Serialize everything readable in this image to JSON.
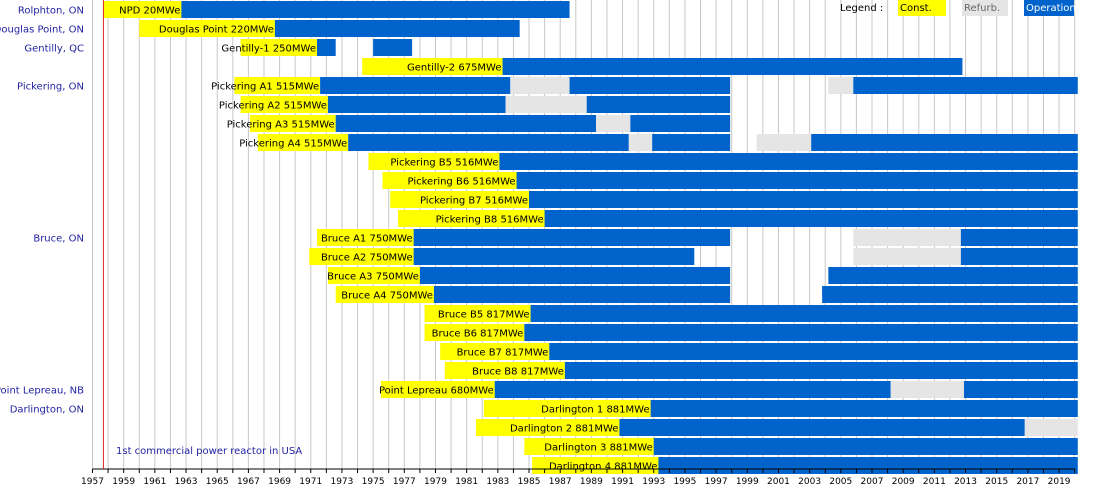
{
  "chart_data": {
    "type": "timeline",
    "title": "",
    "x_axis": {
      "start": 1957,
      "end": 2020,
      "tick_labels": [
        "1957",
        "1959",
        "1961",
        "1963",
        "1965",
        "1967",
        "1969",
        "1971",
        "1973",
        "1975",
        "1977",
        "1979",
        "1981",
        "1983",
        "1985",
        "1987",
        "1989",
        "1991",
        "1993",
        "1995",
        "1997",
        "1999",
        "2001",
        "2003",
        "2005",
        "2007",
        "2009",
        "2011",
        "2013",
        "2015",
        "2017",
        "2019"
      ],
      "grid": true
    },
    "legend": {
      "title": "Legend :",
      "placement": "top-right",
      "entries": [
        {
          "key": "const",
          "label": "Const.",
          "color": "#ffff00"
        },
        {
          "key": "refurb",
          "label": "Refurb.",
          "color": "#e5e5e5"
        },
        {
          "key": "operation",
          "label": "Operation.",
          "color": "#0063cc"
        }
      ]
    },
    "colors": {
      "const": "#ffff00",
      "refurb": "#e5e5e5",
      "operation": "#0063cc",
      "annotation": "#dd2222",
      "label_text": "#1f1fa0"
    },
    "annotations": [
      {
        "year": 1957.7,
        "text": "1st commercial power reactor in USA"
      }
    ],
    "sites": [
      {
        "label": "Rolphton, ON",
        "row": 0
      },
      {
        "label": "Douglas Point, ON",
        "row": 1
      },
      {
        "label": "Gentilly, QC",
        "row": 2
      },
      {
        "label": "Pickering, ON",
        "row": 4
      },
      {
        "label": "Bruce, ON",
        "row": 12
      },
      {
        "label": "Point Lepreau, NB",
        "row": 20
      },
      {
        "label": "Darlington, ON",
        "row": 21
      }
    ],
    "reactors": [
      {
        "name": "NPD",
        "capacity": "20MWe",
        "row": 0,
        "segments": [
          {
            "state": "const",
            "start": 1957.7,
            "end": 1962.7
          },
          {
            "state": "operation",
            "start": 1962.7,
            "end": 1987.6
          }
        ]
      },
      {
        "name": "Douglas Point",
        "capacity": "220MWe",
        "row": 1,
        "segments": [
          {
            "state": "const",
            "start": 1960.0,
            "end": 1968.7
          },
          {
            "state": "operation",
            "start": 1968.7,
            "end": 1984.4
          }
        ]
      },
      {
        "name": "Gentilly-1",
        "capacity": "250MWe",
        "row": 2,
        "segments": [
          {
            "state": "const",
            "start": 1966.5,
            "end": 1971.4
          },
          {
            "state": "operation",
            "start": 1971.4,
            "end": 1972.6
          },
          {
            "state": "operation",
            "start": 1975.0,
            "end": 1977.5
          }
        ]
      },
      {
        "name": "Gentilly-2",
        "capacity": "675MWe",
        "row": 3,
        "segments": [
          {
            "state": "const",
            "start": 1974.3,
            "end": 1983.3
          },
          {
            "state": "operation",
            "start": 1983.3,
            "end": 2012.8
          }
        ]
      },
      {
        "name": "Pickering A1",
        "capacity": "515MWe",
        "row": 4,
        "segments": [
          {
            "state": "const",
            "start": 1966.1,
            "end": 1971.6
          },
          {
            "state": "operation",
            "start": 1971.6,
            "end": 1983.8
          },
          {
            "state": "refurb",
            "start": 1983.8,
            "end": 1987.6
          },
          {
            "state": "operation",
            "start": 1987.6,
            "end": 1997.9
          },
          {
            "state": "refurb",
            "start": 2004.2,
            "end": 2005.8
          },
          {
            "state": "operation",
            "start": 2005.8,
            "end": 2020.2
          }
        ]
      },
      {
        "name": "Pickering A2",
        "capacity": "515MWe",
        "row": 5,
        "segments": [
          {
            "state": "const",
            "start": 1966.5,
            "end": 1972.1
          },
          {
            "state": "operation",
            "start": 1972.1,
            "end": 1983.5
          },
          {
            "state": "refurb",
            "start": 1983.5,
            "end": 1988.7
          },
          {
            "state": "operation",
            "start": 1988.7,
            "end": 1997.9
          }
        ]
      },
      {
        "name": "Pickering A3",
        "capacity": "515MWe",
        "row": 6,
        "segments": [
          {
            "state": "const",
            "start": 1967.1,
            "end": 1972.6
          },
          {
            "state": "operation",
            "start": 1972.6,
            "end": 1989.3
          },
          {
            "state": "refurb",
            "start": 1989.3,
            "end": 1991.5
          },
          {
            "state": "operation",
            "start": 1991.5,
            "end": 1997.9
          }
        ]
      },
      {
        "name": "Pickering A4",
        "capacity": "515MWe",
        "row": 7,
        "segments": [
          {
            "state": "const",
            "start": 1967.6,
            "end": 1973.4
          },
          {
            "state": "operation",
            "start": 1973.4,
            "end": 1991.4
          },
          {
            "state": "refurb",
            "start": 1991.4,
            "end": 1992.9
          },
          {
            "state": "operation",
            "start": 1992.9,
            "end": 1997.9
          },
          {
            "state": "refurb",
            "start": 1999.6,
            "end": 2003.1
          },
          {
            "state": "operation",
            "start": 2003.1,
            "end": 2020.2
          }
        ]
      },
      {
        "name": "Pickering B5",
        "capacity": "516MWe",
        "row": 8,
        "segments": [
          {
            "state": "const",
            "start": 1974.7,
            "end": 1983.1
          },
          {
            "state": "operation",
            "start": 1983.1,
            "end": 2020.2
          }
        ]
      },
      {
        "name": "Pickering B6",
        "capacity": "516MWe",
        "row": 9,
        "segments": [
          {
            "state": "const",
            "start": 1975.6,
            "end": 1984.2
          },
          {
            "state": "operation",
            "start": 1984.2,
            "end": 2020.2
          }
        ]
      },
      {
        "name": "Pickering B7",
        "capacity": "516MWe",
        "row": 10,
        "segments": [
          {
            "state": "const",
            "start": 1976.1,
            "end": 1985.0
          },
          {
            "state": "operation",
            "start": 1985.0,
            "end": 2020.2
          }
        ]
      },
      {
        "name": "Pickering B8",
        "capacity": "516MWe",
        "row": 11,
        "segments": [
          {
            "state": "const",
            "start": 1976.6,
            "end": 1986.0
          },
          {
            "state": "operation",
            "start": 1986.0,
            "end": 2020.2
          }
        ]
      },
      {
        "name": "Bruce A1",
        "capacity": "750MWe",
        "row": 12,
        "segments": [
          {
            "state": "const",
            "start": 1971.4,
            "end": 1977.6
          },
          {
            "state": "operation",
            "start": 1977.6,
            "end": 1997.9
          },
          {
            "state": "refurb",
            "start": 2005.8,
            "end": 2012.7
          },
          {
            "state": "operation",
            "start": 2012.7,
            "end": 2020.2
          }
        ]
      },
      {
        "name": "Bruce A2",
        "capacity": "750MWe",
        "row": 13,
        "segments": [
          {
            "state": "const",
            "start": 1970.9,
            "end": 1977.6
          },
          {
            "state": "operation",
            "start": 1977.6,
            "end": 1995.6
          },
          {
            "state": "refurb",
            "start": 2005.8,
            "end": 2012.7
          },
          {
            "state": "operation",
            "start": 2012.7,
            "end": 2020.2
          }
        ]
      },
      {
        "name": "Bruce A3",
        "capacity": "750MWe",
        "row": 14,
        "segments": [
          {
            "state": "const",
            "start": 1972.1,
            "end": 1978.0
          },
          {
            "state": "operation",
            "start": 1978.0,
            "end": 1997.9
          },
          {
            "state": "operation",
            "start": 2004.2,
            "end": 2020.2
          }
        ]
      },
      {
        "name": "Bruce A4",
        "capacity": "750MWe",
        "row": 15,
        "segments": [
          {
            "state": "const",
            "start": 1972.6,
            "end": 1978.9
          },
          {
            "state": "operation",
            "start": 1978.9,
            "end": 1997.9
          },
          {
            "state": "operation",
            "start": 2003.8,
            "end": 2020.2
          }
        ]
      },
      {
        "name": "Bruce B5",
        "capacity": "817MWe",
        "row": 16,
        "segments": [
          {
            "state": "const",
            "start": 1978.3,
            "end": 1985.1
          },
          {
            "state": "operation",
            "start": 1985.1,
            "end": 2020.2
          }
        ]
      },
      {
        "name": "Bruce B6",
        "capacity": "817MWe",
        "row": 17,
        "segments": [
          {
            "state": "const",
            "start": 1978.3,
            "end": 1984.7
          },
          {
            "state": "operation",
            "start": 1984.7,
            "end": 2020.2
          }
        ]
      },
      {
        "name": "Bruce B7",
        "capacity": "817MWe",
        "row": 18,
        "segments": [
          {
            "state": "const",
            "start": 1979.3,
            "end": 1986.3
          },
          {
            "state": "operation",
            "start": 1986.3,
            "end": 2020.2
          }
        ]
      },
      {
        "name": "Bruce B8",
        "capacity": "817MWe",
        "row": 19,
        "segments": [
          {
            "state": "const",
            "start": 1979.6,
            "end": 1987.3
          },
          {
            "state": "operation",
            "start": 1987.3,
            "end": 2020.2
          }
        ]
      },
      {
        "name": "Point Lepreau",
        "capacity": "680MWe",
        "row": 20,
        "segments": [
          {
            "state": "const",
            "start": 1975.5,
            "end": 1982.8
          },
          {
            "state": "operation",
            "start": 1982.8,
            "end": 2008.2
          },
          {
            "state": "refurb",
            "start": 2008.2,
            "end": 2012.9
          },
          {
            "state": "operation",
            "start": 2012.9,
            "end": 2020.2
          }
        ]
      },
      {
        "name": "Darlington 1",
        "capacity": "881MWe",
        "row": 21,
        "segments": [
          {
            "state": "const",
            "start": 1982.1,
            "end": 1992.8
          },
          {
            "state": "operation",
            "start": 1992.8,
            "end": 2020.2
          }
        ]
      },
      {
        "name": "Darlington 2",
        "capacity": "881MWe",
        "row": 22,
        "segments": [
          {
            "state": "const",
            "start": 1981.6,
            "end": 1990.8
          },
          {
            "state": "operation",
            "start": 1990.8,
            "end": 2016.8
          },
          {
            "state": "refurb",
            "start": 2016.8,
            "end": 2020.2
          }
        ]
      },
      {
        "name": "Darlington 3",
        "capacity": "881MWe",
        "row": 23,
        "segments": [
          {
            "state": "const",
            "start": 1984.7,
            "end": 1993.0
          },
          {
            "state": "operation",
            "start": 1993.0,
            "end": 2020.2
          }
        ]
      },
      {
        "name": "Darlington 4",
        "capacity": "881MWe",
        "row": 24,
        "segments": [
          {
            "state": "const",
            "start": 1985.2,
            "end": 1993.3
          },
          {
            "state": "operation",
            "start": 1993.3,
            "end": 2020.2
          }
        ]
      }
    ]
  }
}
